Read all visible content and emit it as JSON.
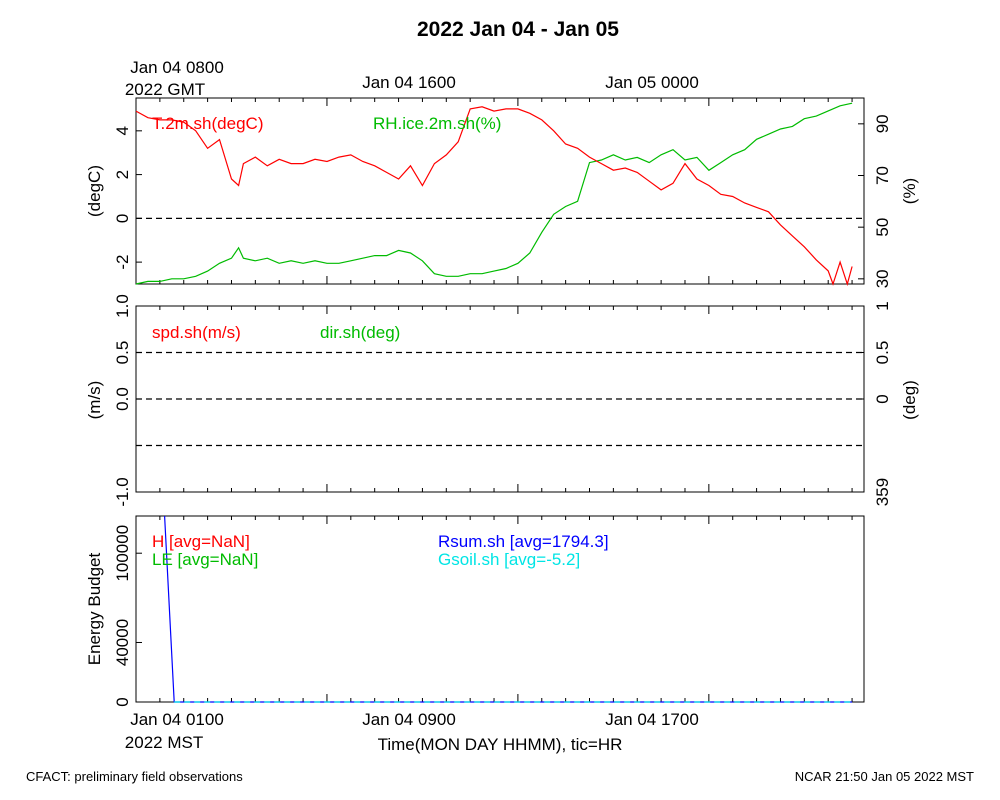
{
  "title": "2022 Jan 04 - Jan 05",
  "top_axis": {
    "first_label_line1": "Jan 04 0800",
    "first_label_line2": "2022 GMT",
    "labels": [
      "Jan 04 1600",
      "Jan 05 0000"
    ]
  },
  "bottom_axis": {
    "first_label_line1": "Jan 04 0100",
    "first_label_line2": "2022 MST",
    "labels": [
      "Jan 04 0900",
      "Jan 04 1700"
    ],
    "xlabel": "Time(MON DAY HHMM), tic=HR"
  },
  "footer": {
    "left": "CFACT: preliminary field observations",
    "right": "NCAR 21:50 Jan 05 2022 MST"
  },
  "colors": {
    "red": "#ff0000",
    "green": "#00bb00",
    "blue": "#0000ff",
    "cyan": "#00e5e5",
    "dashed": "#000000"
  },
  "chart_data": [
    {
      "type": "line",
      "panel": "temperature-humidity",
      "x_unit": "hours since Jan 04 0100 MST",
      "xlim": [
        0,
        30.5
      ],
      "ylabel": "(degC)",
      "ylim": [
        -3,
        5.5
      ],
      "yticks": [
        "-2",
        "0",
        "2",
        "4"
      ],
      "ytick_values": [
        -2,
        0,
        2,
        4
      ],
      "y2label": "(%)",
      "y2lim": [
        28,
        100
      ],
      "y2ticks": [
        "30",
        "50",
        "70",
        "90"
      ],
      "y2tick_values": [
        30,
        50,
        70,
        90
      ],
      "reference_line": 0,
      "series": [
        {
          "name": "T.2m.sh(degC)",
          "axis": "left",
          "color": "#ff0000",
          "x": [
            0,
            0.5,
            1,
            1.5,
            2,
            2.5,
            3,
            3.5,
            4,
            4.3,
            4.5,
            5,
            5.5,
            6,
            6.5,
            7,
            7.5,
            8,
            8.5,
            9,
            9.5,
            10,
            10.5,
            11,
            11.5,
            12,
            12.5,
            13,
            13.5,
            14,
            14.5,
            15,
            15.5,
            16,
            16.5,
            17,
            17.5,
            18,
            18.5,
            19,
            19.5,
            20,
            20.5,
            21,
            21.5,
            22,
            22.5,
            23,
            23.5,
            24,
            24.5,
            25,
            25.5,
            26,
            26.5,
            27,
            27.5,
            28,
            28.5,
            29,
            29.2,
            29.5,
            29.8,
            30
          ],
          "values": [
            4.9,
            4.6,
            4.5,
            4.5,
            4.4,
            4.0,
            3.2,
            3.6,
            1.8,
            1.5,
            2.5,
            2.8,
            2.4,
            2.7,
            2.5,
            2.5,
            2.7,
            2.6,
            2.8,
            2.9,
            2.6,
            2.4,
            2.1,
            1.8,
            2.4,
            1.5,
            2.5,
            2.9,
            3.5,
            5.0,
            5.1,
            4.9,
            5.0,
            5.0,
            4.8,
            4.5,
            4.0,
            3.4,
            3.2,
            2.8,
            2.5,
            2.2,
            2.3,
            2.1,
            1.7,
            1.3,
            1.6,
            2.5,
            1.8,
            1.5,
            1.1,
            1.0,
            0.7,
            0.5,
            0.3,
            -0.3,
            -0.8,
            -1.3,
            -1.9,
            -2.4,
            -3.0,
            -2.0,
            -3.0,
            -2.2
          ]
        },
        {
          "name": "RH.ice.2m.sh(%)",
          "axis": "right",
          "color": "#00bb00",
          "x": [
            0,
            0.5,
            1,
            1.5,
            2,
            2.5,
            3,
            3.5,
            4,
            4.3,
            4.5,
            5,
            5.5,
            6,
            6.5,
            7,
            7.5,
            8,
            8.5,
            9,
            9.5,
            10,
            10.5,
            11,
            11.5,
            12,
            12.5,
            13,
            13.5,
            14,
            14.5,
            15,
            15.5,
            16,
            16.5,
            17,
            17.5,
            18,
            18.5,
            19,
            19.5,
            20,
            20.5,
            21,
            21.5,
            22,
            22.5,
            23,
            23.5,
            24,
            24.5,
            25,
            25.5,
            26,
            26.5,
            27,
            27.5,
            28,
            28.5,
            29,
            29.5,
            30
          ],
          "values": [
            28,
            29,
            29,
            30,
            30,
            31,
            33,
            36,
            38,
            42,
            38,
            37,
            38,
            36,
            37,
            36,
            37,
            36,
            36,
            37,
            38,
            39,
            39,
            41,
            40,
            37,
            32,
            31,
            31,
            32,
            32,
            33,
            34,
            36,
            40,
            48,
            55,
            58,
            60,
            75,
            76,
            78,
            76,
            77,
            75,
            78,
            80,
            76,
            77,
            72,
            75,
            78,
            80,
            84,
            86,
            88,
            89,
            92,
            93,
            95,
            97,
            98
          ]
        }
      ]
    },
    {
      "type": "line",
      "panel": "wind",
      "xlim": [
        0,
        30.5
      ],
      "ylabel": "(m/s)",
      "ylim": [
        -1.0,
        1.0
      ],
      "yticks": [
        "-1.0",
        "0.0",
        "0.5",
        "1.0"
      ],
      "ytick_values": [
        -1.0,
        0.0,
        0.5,
        1.0
      ],
      "y2label": "(deg)",
      "y2ticks": [
        "359",
        "0",
        "0.5",
        "1"
      ],
      "y2tick_values": [
        -1.0,
        0.0,
        0.5,
        1.0
      ],
      "dashed_lines": [
        0.5,
        0.0,
        -0.5
      ],
      "series": [
        {
          "name": "spd.sh(m/s)",
          "color": "#ff0000",
          "values": []
        },
        {
          "name": "dir.sh(deg)",
          "color": "#00bb00",
          "values": []
        }
      ]
    },
    {
      "type": "line",
      "panel": "energy-budget",
      "xlim": [
        0,
        30.5
      ],
      "ylabel": "Energy Budget",
      "ylim": [
        0,
        125000
      ],
      "yticks": [
        "0",
        "40000",
        "100000"
      ],
      "ytick_values": [
        0,
        40000,
        100000
      ],
      "series": [
        {
          "name": "H",
          "legend": "H [avg=NaN]",
          "color": "#ff0000",
          "x": [],
          "values": []
        },
        {
          "name": "LE",
          "legend": "LE [avg=NaN]",
          "color": "#00bb00",
          "x": [],
          "values": []
        },
        {
          "name": "Rsum.sh",
          "legend": "Rsum.sh [avg=1794.3]",
          "color": "#0000ff",
          "x": [
            1.2,
            1.6,
            2.0,
            30.0
          ],
          "values": [
            130000,
            0,
            0,
            0
          ]
        },
        {
          "name": "Gsoil.sh",
          "legend": "Gsoil.sh [avg=-5.2]",
          "color": "#00e5e5",
          "x": [
            1.6,
            30.0
          ],
          "values": [
            -5,
            -5
          ]
        }
      ]
    }
  ]
}
